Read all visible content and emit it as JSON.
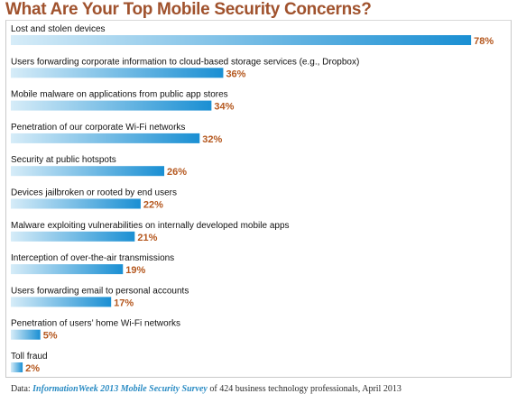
{
  "chart_data": {
    "type": "bar",
    "orientation": "horizontal",
    "title": "What Are Your Top Mobile Security Concerns?",
    "unit": "%",
    "categories": [
      "Lost and stolen devices",
      "Users forwarding corporate information to cloud-based storage services (e.g., Dropbox)",
      "Mobile malware on applications from public app stores",
      "Penetration of our corporate Wi-Fi networks",
      "Security at public hotspots",
      "Devices jailbroken or rooted by end users",
      "Malware exploiting vulnerabilities on internally developed mobile apps",
      "Interception of over-the-air transmissions",
      "Users forwarding email to personal accounts",
      "Penetration of users’ home Wi-Fi networks",
      "Toll fraud"
    ],
    "values": [
      78,
      36,
      34,
      32,
      26,
      22,
      21,
      19,
      17,
      5,
      2
    ],
    "value_labels": [
      "78%",
      "36%",
      "34%",
      "32%",
      "26%",
      "22%",
      "21%",
      "19%",
      "17%",
      "5%",
      "2%"
    ],
    "xlim": [
      0,
      100
    ],
    "grid": false,
    "legend": "none",
    "colors": {
      "bar_light": "#d6ecf8",
      "bar_dark": "#1a8fd3",
      "value_label": "#b5581f",
      "title": "#a0522d",
      "category_label": "#111111"
    }
  },
  "source": {
    "prefix": "Data: ",
    "publication": "InformationWeek 2013 Mobile Security Survey",
    "suffix": " of 424 business technology professionals, April 2013"
  }
}
